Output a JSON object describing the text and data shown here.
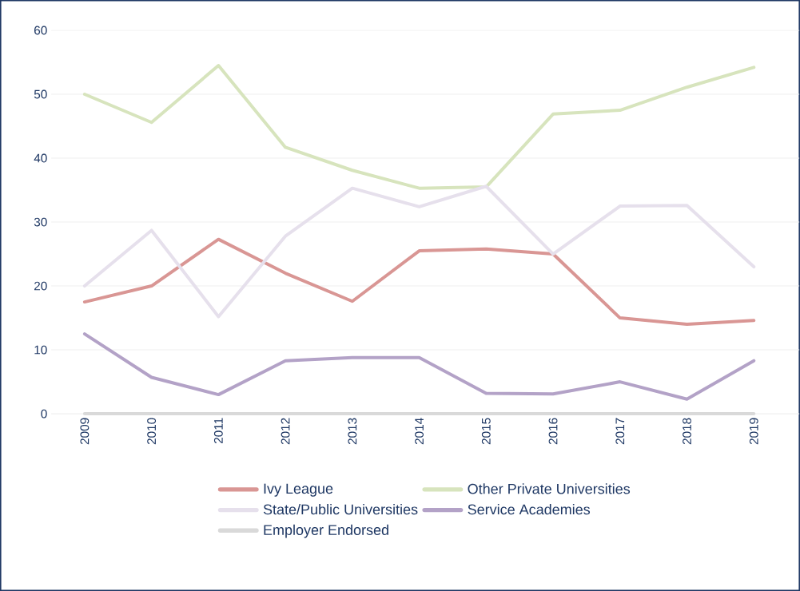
{
  "chart_data": {
    "type": "line",
    "categories": [
      "2009",
      "2010",
      "2011",
      "2012",
      "2013",
      "2014",
      "2015",
      "2016",
      "2017",
      "2018",
      "2019"
    ],
    "series": [
      {
        "name": "Ivy League",
        "color": "#d99694",
        "values": [
          17.5,
          20,
          27.3,
          22,
          17.6,
          25.5,
          25.8,
          25,
          15,
          14,
          14.6
        ]
      },
      {
        "name": "Other Private Universities",
        "color": "#d7e4bd",
        "values": [
          50,
          45.6,
          54.5,
          41.7,
          38.1,
          35.3,
          35.5,
          46.9,
          47.5,
          51.1,
          54.2
        ]
      },
      {
        "name": "State/Public Universities",
        "color": "#e6e0ec",
        "values": [
          20,
          28.7,
          15.2,
          27.8,
          35.3,
          32.4,
          35.6,
          25,
          32.5,
          32.6,
          23
        ]
      },
      {
        "name": "Service Academies",
        "color": "#b3a2c7",
        "values": [
          12.5,
          5.7,
          3,
          8.3,
          8.8,
          8.8,
          3.2,
          3.1,
          5,
          2.3,
          8.3
        ]
      },
      {
        "name": "Employer Endorsed",
        "color": "#d9d9d9",
        "values": [
          0,
          0,
          0,
          0,
          0,
          0,
          0,
          0,
          0,
          0,
          0
        ]
      }
    ],
    "ylim": [
      0,
      60
    ],
    "yticks": [
      0,
      10,
      20,
      30,
      40,
      50,
      60
    ],
    "grid": "y",
    "legend": "bottom",
    "marker": "none",
    "line_style": "solid"
  }
}
